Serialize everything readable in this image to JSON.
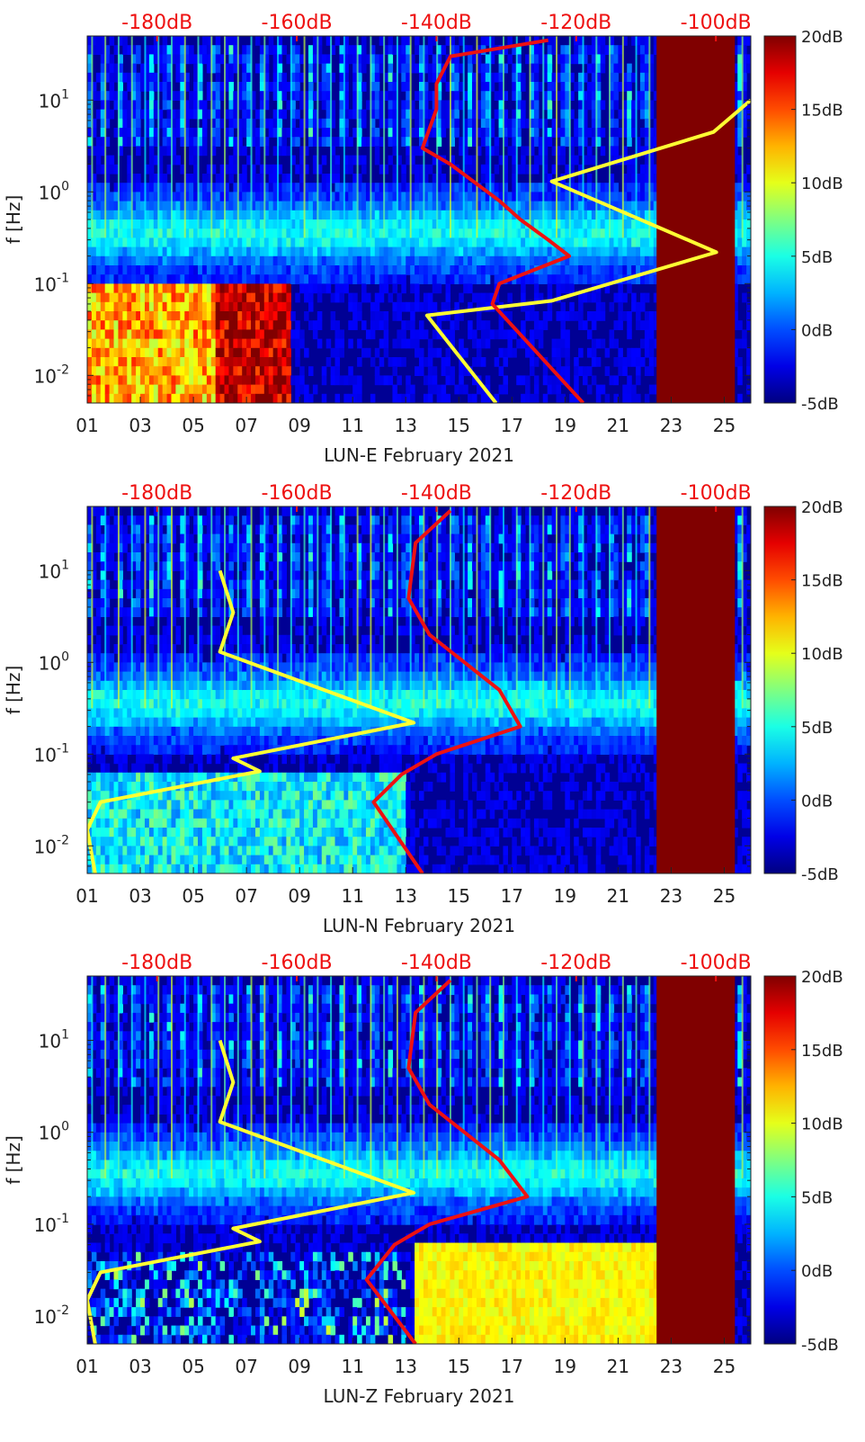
{
  "chart_data": [
    {
      "type": "heatmap",
      "station": "LUN-E",
      "xlabel": "LUN-E February 2021",
      "ylabel": "f [Hz]",
      "x_ticks": [
        "01",
        "03",
        "05",
        "07",
        "09",
        "11",
        "13",
        "15",
        "17",
        "19",
        "21",
        "23",
        "25"
      ],
      "x_range_days": [
        1,
        26
      ],
      "y_scale": "log",
      "y_range_hz": [
        0.005,
        50
      ],
      "y_ticks": [
        {
          "e": "-2",
          "v": 0.01
        },
        {
          "e": "-1",
          "v": 0.1
        },
        {
          "e": "0",
          "v": 1
        },
        {
          "e": "1",
          "v": 10
        }
      ],
      "top_axis_ticks": [
        "-180dB",
        "-160dB",
        "-140dB",
        "-120dB",
        "-100dB"
      ],
      "top_axis_range_db": [
        -190,
        -95
      ],
      "colorbar": {
        "ticks": [
          "20dB",
          "15dB",
          "10dB",
          "5dB",
          "0dB",
          "-5dB"
        ],
        "range_db": [
          -5,
          20
        ],
        "colormap": "jet"
      },
      "lowfreq_regime": "high",
      "series": [
        {
          "name": "yellow_curve",
          "color": "#ffff33",
          "axis": "day",
          "points": [
            [
              16.4,
              0.005
            ],
            [
              13.8,
              0.045
            ],
            [
              18.5,
              0.065
            ],
            [
              24.7,
              0.22
            ],
            [
              18.5,
              1.3
            ],
            [
              24.6,
              4.5
            ],
            [
              26,
              10
            ]
          ]
        },
        {
          "name": "red_curve",
          "color": "#ee1111",
          "axis": "dB",
          "points": [
            [
              -119,
              0.005
            ],
            [
              -132,
              0.06
            ],
            [
              -131,
              0.1
            ],
            [
              -121,
              0.2
            ],
            [
              -124,
              0.3
            ],
            [
              -128,
              0.5
            ],
            [
              -131,
              0.8
            ],
            [
              -138,
              2
            ],
            [
              -142,
              3
            ],
            [
              -140,
              8
            ],
            [
              -140,
              15
            ],
            [
              -138,
              30
            ],
            [
              -124,
              45
            ]
          ]
        }
      ]
    },
    {
      "type": "heatmap",
      "station": "LUN-N",
      "xlabel": "LUN-N February 2021",
      "ylabel": "f [Hz]",
      "x_ticks": [
        "01",
        "03",
        "05",
        "07",
        "09",
        "11",
        "13",
        "15",
        "17",
        "19",
        "21",
        "23",
        "25"
      ],
      "x_range_days": [
        1,
        26
      ],
      "y_scale": "log",
      "y_range_hz": [
        0.005,
        50
      ],
      "y_ticks": [
        {
          "e": "-2",
          "v": 0.01
        },
        {
          "e": "-1",
          "v": 0.1
        },
        {
          "e": "0",
          "v": 1
        },
        {
          "e": "1",
          "v": 10
        }
      ],
      "top_axis_ticks": [
        "-180dB",
        "-160dB",
        "-140dB",
        "-120dB",
        "-100dB"
      ],
      "top_axis_range_db": [
        -190,
        -95
      ],
      "colorbar": {
        "ticks": [
          "20dB",
          "15dB",
          "10dB",
          "5dB",
          "0dB",
          "-5dB"
        ],
        "range_db": [
          -5,
          20
        ],
        "colormap": "jet"
      },
      "lowfreq_regime": "mid",
      "series": [
        {
          "name": "yellow_curve",
          "color": "#ffff33",
          "axis": "day",
          "points": [
            [
              1.3,
              0.005
            ],
            [
              1,
              0.015
            ],
            [
              1.5,
              0.03
            ],
            [
              7.5,
              0.065
            ],
            [
              6.5,
              0.09
            ],
            [
              13.3,
              0.22
            ],
            [
              6,
              1.3
            ],
            [
              6.5,
              3.5
            ],
            [
              6,
              10
            ]
          ]
        },
        {
          "name": "red_curve",
          "color": "#ee1111",
          "axis": "dB",
          "points": [
            [
              -142,
              0.005
            ],
            [
              -149,
              0.03
            ],
            [
              -145,
              0.06
            ],
            [
              -140,
              0.1
            ],
            [
              -128,
              0.2
            ],
            [
              -131,
              0.5
            ],
            [
              -141,
              2
            ],
            [
              -144,
              5
            ],
            [
              -143,
              20
            ],
            [
              -138,
              45
            ]
          ]
        }
      ]
    },
    {
      "type": "heatmap",
      "station": "LUN-Z",
      "xlabel": "LUN-Z February 2021",
      "ylabel": "f [Hz]",
      "x_ticks": [
        "01",
        "03",
        "05",
        "07",
        "09",
        "11",
        "13",
        "15",
        "17",
        "19",
        "21",
        "23",
        "25"
      ],
      "x_range_days": [
        1,
        26
      ],
      "y_scale": "log",
      "y_range_hz": [
        0.005,
        50
      ],
      "y_ticks": [
        {
          "e": "-2",
          "v": 0.01
        },
        {
          "e": "-1",
          "v": 0.1
        },
        {
          "e": "0",
          "v": 1
        },
        {
          "e": "1",
          "v": 10
        }
      ],
      "top_axis_ticks": [
        "-180dB",
        "-160dB",
        "-140dB",
        "-120dB",
        "-100dB"
      ],
      "top_axis_range_db": [
        -190,
        -95
      ],
      "colorbar": {
        "ticks": [
          "20dB",
          "15dB",
          "10dB",
          "5dB",
          "0dB",
          "-5dB"
        ],
        "range_db": [
          -5,
          20
        ],
        "colormap": "jet"
      },
      "lowfreq_regime": "z",
      "series": [
        {
          "name": "yellow_curve",
          "color": "#ffff33",
          "axis": "day",
          "points": [
            [
              1.3,
              0.005
            ],
            [
              1,
              0.015
            ],
            [
              1.5,
              0.03
            ],
            [
              7.5,
              0.065
            ],
            [
              6.5,
              0.09
            ],
            [
              13.3,
              0.22
            ],
            [
              6,
              1.3
            ],
            [
              6.5,
              3.5
            ],
            [
              6,
              10
            ]
          ]
        },
        {
          "name": "red_curve",
          "color": "#ee1111",
          "axis": "dB",
          "points": [
            [
              -143,
              0.005
            ],
            [
              -150,
              0.025
            ],
            [
              -146,
              0.06
            ],
            [
              -141,
              0.1
            ],
            [
              -127,
              0.2
            ],
            [
              -131,
              0.5
            ],
            [
              -141,
              2
            ],
            [
              -144,
              5
            ],
            [
              -143,
              20
            ],
            [
              -138,
              45
            ]
          ]
        }
      ]
    }
  ]
}
